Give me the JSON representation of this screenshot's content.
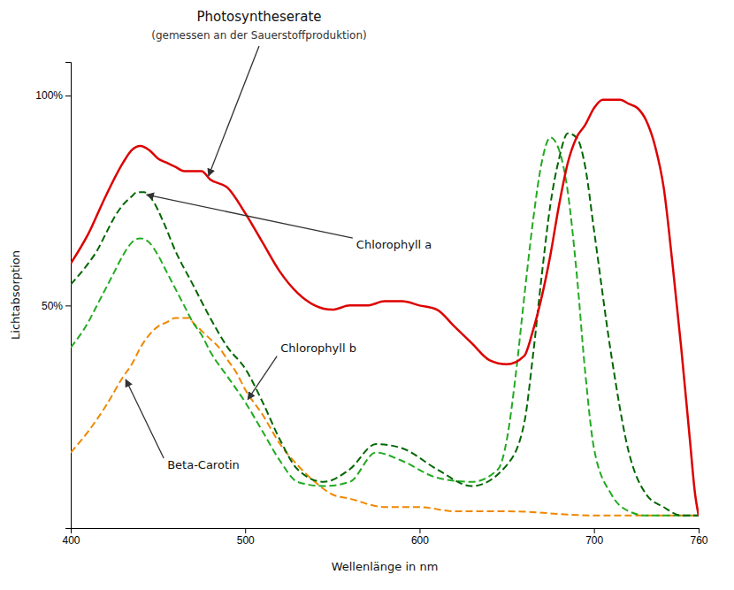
{
  "chart_data": {
    "type": "line",
    "title": "Photosyntheserate",
    "subtitle": "(gemessen an der Sauerstoffproduktion)",
    "x_label": "Wellenlänge in nm",
    "y_label": "Lichtabsorption",
    "xlim": [
      400,
      760
    ],
    "xticks": [
      400,
      500,
      600,
      700,
      760
    ],
    "ylim": [
      -3,
      108
    ],
    "yticks": [
      {
        "value": 50,
        "label": "50%"
      },
      {
        "value": 100,
        "label": "100%"
      }
    ],
    "grid": false,
    "series": [
      {
        "color": "#dd0000",
        "line_style": "solid",
        "x": [
          400,
          410,
          420,
          430,
          435,
          440,
          445,
          450,
          455,
          460,
          465,
          470,
          475,
          480,
          490,
          500,
          510,
          520,
          530,
          540,
          550,
          560,
          570,
          580,
          590,
          600,
          610,
          620,
          630,
          640,
          650,
          660,
          665,
          670,
          675,
          680,
          685,
          690,
          695,
          700,
          705,
          710,
          715,
          720,
          725,
          730,
          735,
          740,
          745,
          750,
          755,
          758,
          760
        ],
        "values": [
          60,
          67,
          76,
          84,
          87,
          88,
          87,
          85,
          84,
          83,
          82,
          82,
          82,
          80,
          78,
          72,
          65,
          58,
          53,
          50,
          49,
          50,
          50,
          51,
          51,
          50,
          49,
          45,
          41,
          37,
          36,
          38,
          44,
          52,
          62,
          74,
          84,
          90,
          93,
          97,
          99,
          99,
          99,
          98,
          97,
          94,
          88,
          78,
          60,
          40,
          18,
          5,
          0
        ]
      },
      {
        "name": "Chlorophyll a",
        "color": "#006600",
        "line_style": "dashed",
        "x": [
          400,
          410,
          415,
          420,
          425,
          430,
          435,
          438,
          442,
          447,
          453,
          460,
          470,
          480,
          490,
          500,
          510,
          520,
          530,
          545,
          560,
          575,
          590,
          610,
          630,
          650,
          660,
          665,
          670,
          675,
          680,
          685,
          690,
          695,
          700,
          710,
          720,
          730,
          740,
          750,
          760
        ],
        "values": [
          55,
          60,
          63,
          67,
          71,
          74,
          76,
          77,
          77,
          75,
          70,
          63,
          55,
          47,
          40,
          35,
          27,
          18,
          11,
          8,
          11,
          17,
          16,
          11,
          7,
          12,
          22,
          38,
          57,
          74,
          85,
          91,
          90,
          83,
          68,
          38,
          15,
          5,
          2,
          0,
          0
        ]
      },
      {
        "name": "Chlorophyll b",
        "color": "#22aa22",
        "line_style": "dashed",
        "x": [
          400,
          410,
          415,
          420,
          425,
          430,
          435,
          440,
          445,
          450,
          455,
          460,
          465,
          470,
          475,
          480,
          490,
          500,
          510,
          520,
          530,
          545,
          560,
          575,
          590,
          610,
          630,
          645,
          650,
          655,
          660,
          665,
          670,
          675,
          680,
          685,
          690,
          695,
          700,
          710,
          720,
          730,
          760
        ],
        "values": [
          40,
          46,
          50,
          54,
          58,
          62,
          65,
          66,
          65,
          62,
          58,
          54,
          50,
          46,
          43,
          39,
          33,
          27,
          20,
          13,
          8,
          7,
          8,
          15,
          13,
          9,
          8,
          11,
          18,
          33,
          52,
          70,
          84,
          90,
          87,
          77,
          58,
          34,
          16,
          5,
          1,
          0,
          0
        ]
      },
      {
        "name": "Beta-Carotin",
        "color": "#ee8800",
        "line_style": "dashed",
        "x": [
          400,
          410,
          420,
          430,
          435,
          440,
          445,
          450,
          455,
          460,
          465,
          468,
          470,
          475,
          480,
          485,
          490,
          495,
          500,
          510,
          520,
          530,
          540,
          550,
          560,
          580,
          600,
          620,
          650,
          700,
          760
        ],
        "values": [
          15,
          20,
          26,
          33,
          36,
          40,
          43,
          45,
          46,
          47,
          47,
          47,
          46,
          44,
          42,
          40,
          37,
          34,
          30,
          24,
          17,
          12,
          8,
          5,
          4,
          2,
          2,
          1,
          1,
          0,
          0
        ]
      }
    ]
  }
}
